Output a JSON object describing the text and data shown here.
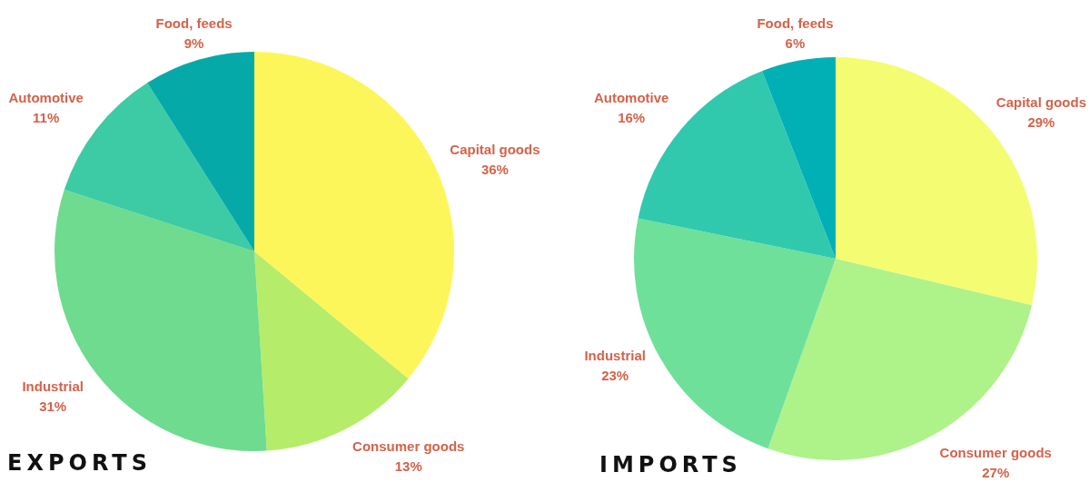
{
  "chart_data": [
    {
      "type": "pie",
      "title": "EXPORTS",
      "categories": [
        "Capital goods",
        "Consumer goods",
        "Industrial",
        "Automotive",
        "Food, feeds"
      ],
      "values": [
        36,
        13,
        31,
        11,
        9
      ],
      "value_labels": [
        "36%",
        "13%",
        "31%",
        "11%",
        "9%"
      ],
      "colors": [
        "#fdf65a",
        "#b5ec6a",
        "#6edb8e",
        "#3ccba4",
        "#05aaa8"
      ]
    },
    {
      "type": "pie",
      "title": "IMPORTS",
      "categories": [
        "Capital goods",
        "Consumer goods",
        "Industrial",
        "Automotive",
        "Food, feeds"
      ],
      "values": [
        29,
        27,
        23,
        16,
        6
      ],
      "value_labels": [
        "29%",
        "27%",
        "23%",
        "16%",
        "6%"
      ],
      "colors": [
        "#f4fd72",
        "#aef28a",
        "#6ee09a",
        "#30c9ad",
        "#00b0b5"
      ]
    }
  ]
}
